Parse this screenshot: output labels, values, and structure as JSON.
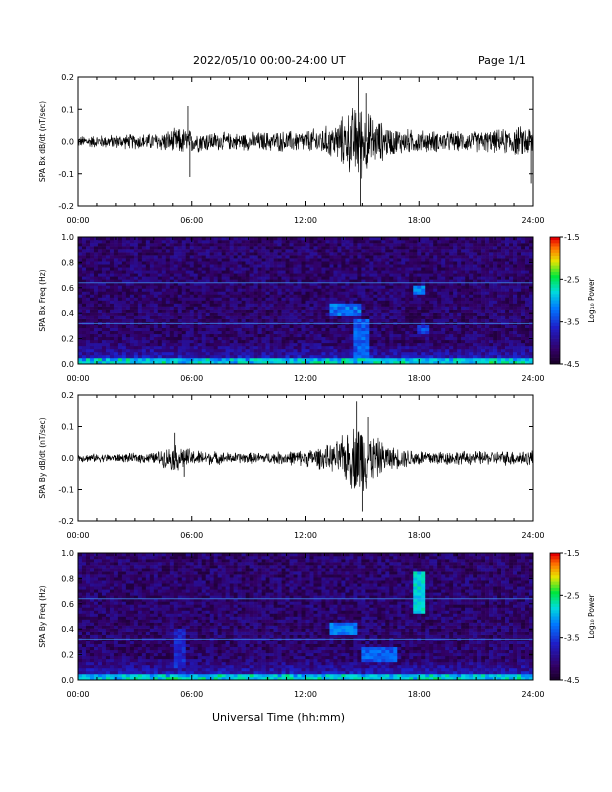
{
  "header": {
    "title": "2022/05/10  00:00-24:00 UT",
    "page": "Page 1/1"
  },
  "xaxis": {
    "title": "Universal Time (hh:mm)",
    "ticks": [
      "00:00",
      "06:00",
      "12:00",
      "18:00",
      "24:00"
    ]
  },
  "colorbar": {
    "label": "Log₁₀ Power",
    "ticks": [
      "-1.5",
      "-2.5",
      "-3.5",
      "-4.5"
    ]
  },
  "chart_data": [
    {
      "type": "line",
      "ylabel": "SPA Bx dB/dt (nT/sec)",
      "xlim": [
        0,
        24
      ],
      "ylim": [
        -0.2,
        0.2
      ],
      "yticks": [
        -0.2,
        -0.1,
        0.0,
        0.1,
        0.2
      ],
      "ytick_labels": [
        "-0.2",
        "-0.1",
        "0.0",
        "0.1",
        "0.2"
      ],
      "envelope": [
        {
          "x": 0,
          "amp": 0.02
        },
        {
          "x": 2,
          "amp": 0.025
        },
        {
          "x": 4,
          "amp": 0.03
        },
        {
          "x": 5.5,
          "amp": 0.05
        },
        {
          "x": 6,
          "amp": 0.04
        },
        {
          "x": 8,
          "amp": 0.03
        },
        {
          "x": 10,
          "amp": 0.035
        },
        {
          "x": 12,
          "amp": 0.04
        },
        {
          "x": 13.5,
          "amp": 0.06
        },
        {
          "x": 14.8,
          "amp": 0.14
        },
        {
          "x": 15.5,
          "amp": 0.09
        },
        {
          "x": 16.5,
          "amp": 0.05
        },
        {
          "x": 18,
          "amp": 0.04
        },
        {
          "x": 20,
          "amp": 0.035
        },
        {
          "x": 22,
          "amp": 0.04
        },
        {
          "x": 24,
          "amp": 0.06
        }
      ],
      "spikes": [
        {
          "x": 5.8,
          "y": 0.11
        },
        {
          "x": 5.9,
          "y": -0.11
        },
        {
          "x": 14.8,
          "y": 0.2
        },
        {
          "x": 14.9,
          "y": -0.2
        },
        {
          "x": 15.2,
          "y": 0.15
        },
        {
          "x": 23.9,
          "y": -0.13
        }
      ]
    },
    {
      "type": "heatmap",
      "ylabel": "SPA Bx Freq (Hz)",
      "xlim": [
        0,
        24
      ],
      "ylim": [
        0,
        1.0
      ],
      "yticks": [
        0.0,
        0.2,
        0.4,
        0.6,
        0.8,
        1.0
      ],
      "ytick_labels": [
        "0.0",
        "0.2",
        "0.4",
        "0.6",
        "0.8",
        "1.0"
      ],
      "zlim": [
        -4.5,
        -1.5
      ],
      "features": [
        {
          "x": [
            13.2,
            15.0
          ],
          "f": [
            0.38,
            0.48
          ],
          "z": -3.0
        },
        {
          "x": [
            17.7,
            18.3
          ],
          "f": [
            0.55,
            0.62
          ],
          "z": -2.9
        },
        {
          "x": [
            14.5,
            15.3
          ],
          "f": [
            0.05,
            0.35
          ],
          "z": -3.1
        },
        {
          "x": [
            18.0,
            18.5
          ],
          "f": [
            0.25,
            0.3
          ],
          "z": -3.2
        }
      ]
    },
    {
      "type": "line",
      "ylabel": "SPA By dB/dt (nT/sec)",
      "xlim": [
        0,
        24
      ],
      "ylim": [
        -0.2,
        0.2
      ],
      "yticks": [
        -0.2,
        -0.1,
        0.0,
        0.1,
        0.2
      ],
      "ytick_labels": [
        "-0.2",
        "-0.1",
        "0.0",
        "0.1",
        "0.2"
      ],
      "envelope": [
        {
          "x": 0,
          "amp": 0.015
        },
        {
          "x": 2,
          "amp": 0.015
        },
        {
          "x": 4,
          "amp": 0.02
        },
        {
          "x": 5.2,
          "amp": 0.05
        },
        {
          "x": 6,
          "amp": 0.03
        },
        {
          "x": 8,
          "amp": 0.02
        },
        {
          "x": 10,
          "amp": 0.02
        },
        {
          "x": 12,
          "amp": 0.03
        },
        {
          "x": 13.5,
          "amp": 0.05
        },
        {
          "x": 14.9,
          "amp": 0.14
        },
        {
          "x": 15.6,
          "amp": 0.08
        },
        {
          "x": 16.5,
          "amp": 0.04
        },
        {
          "x": 18,
          "amp": 0.03
        },
        {
          "x": 20,
          "amp": 0.025
        },
        {
          "x": 22,
          "amp": 0.025
        },
        {
          "x": 24,
          "amp": 0.03
        }
      ],
      "spikes": [
        {
          "x": 5.1,
          "y": 0.08
        },
        {
          "x": 5.6,
          "y": -0.06
        },
        {
          "x": 14.7,
          "y": 0.18
        },
        {
          "x": 15.0,
          "y": -0.17
        },
        {
          "x": 15.3,
          "y": 0.13
        }
      ]
    },
    {
      "type": "heatmap",
      "ylabel": "SPA By Freq (Hz)",
      "xlim": [
        0,
        24
      ],
      "ylim": [
        0,
        1.0
      ],
      "yticks": [
        0.0,
        0.2,
        0.4,
        0.6,
        0.8,
        1.0
      ],
      "ytick_labels": [
        "0.0",
        "0.2",
        "0.4",
        "0.6",
        "0.8",
        "1.0"
      ],
      "zlim": [
        -4.5,
        -1.5
      ],
      "features": [
        {
          "x": [
            17.6,
            18.3
          ],
          "f": [
            0.52,
            0.85
          ],
          "z": -2.6
        },
        {
          "x": [
            13.2,
            14.8
          ],
          "f": [
            0.36,
            0.45
          ],
          "z": -3.0
        },
        {
          "x": [
            15.0,
            16.8
          ],
          "f": [
            0.15,
            0.25
          ],
          "z": -3.1
        },
        {
          "x": [
            5.0,
            5.6
          ],
          "f": [
            0.1,
            0.4
          ],
          "z": -3.4
        }
      ]
    }
  ]
}
